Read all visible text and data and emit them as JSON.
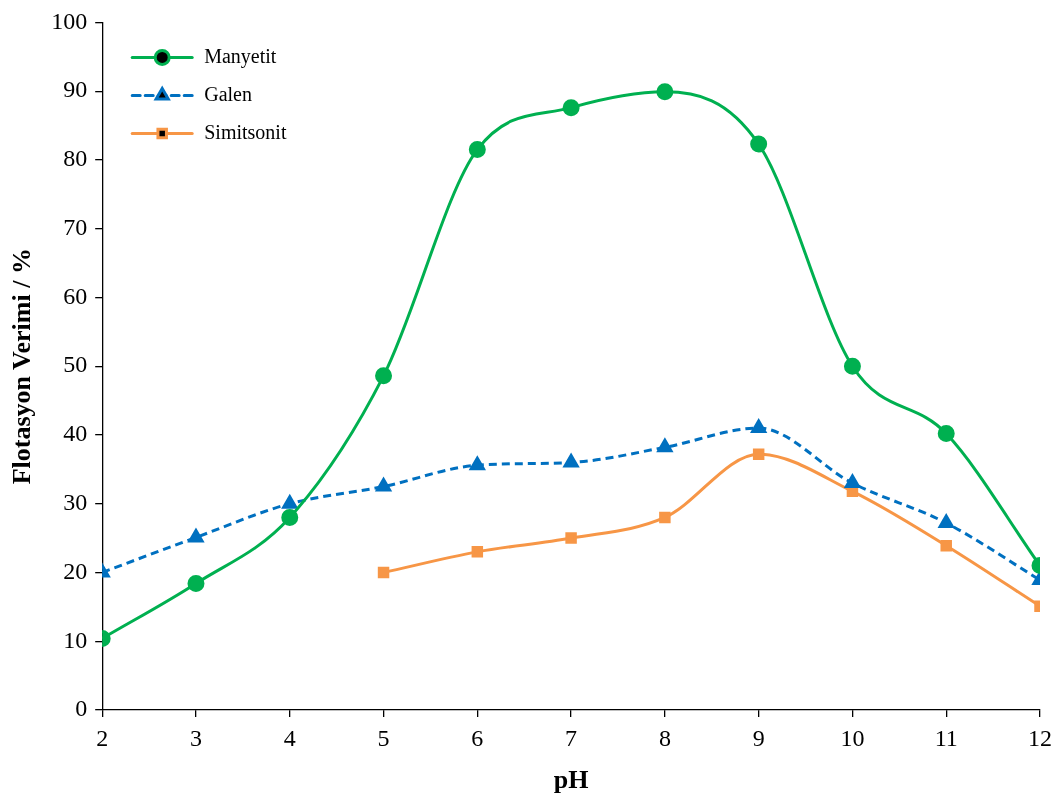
{
  "chart_data": {
    "type": "line",
    "xlabel": "pH",
    "ylabel": "Flotasyon Verimi / %",
    "x": [
      2,
      3,
      4,
      5,
      6,
      7,
      8,
      9,
      10,
      11,
      12
    ],
    "xlim": [
      2,
      12
    ],
    "xticks": [
      2,
      3,
      4,
      5,
      6,
      7,
      8,
      9,
      10,
      11,
      12
    ],
    "ylim": [
      0,
      100
    ],
    "yticks": [
      0,
      10,
      20,
      30,
      40,
      50,
      60,
      70,
      80,
      90,
      100
    ],
    "grid": false,
    "legend": "top left",
    "series": [
      {
        "name": "Manyetit",
        "color": "#00b050",
        "marker": "circle",
        "line_style": "solid",
        "values": [
          10.4,
          18.4,
          28,
          48.6,
          81.5,
          87.6,
          89.9,
          82.3,
          50,
          40.2,
          21
        ]
      },
      {
        "name": "Galen",
        "color": "#0070c0",
        "marker": "triangle",
        "line_style": "dashed",
        "values": [
          20,
          25.1,
          30,
          32.5,
          35.6,
          36,
          38.2,
          41,
          33,
          27.2,
          18.9
        ]
      },
      {
        "name": "Simitsonit",
        "color": "#f79646",
        "marker": "square",
        "line_style": "solid",
        "values": [
          null,
          null,
          null,
          20,
          23,
          25,
          28,
          37.2,
          31.8,
          23.9,
          15.1
        ]
      }
    ]
  }
}
